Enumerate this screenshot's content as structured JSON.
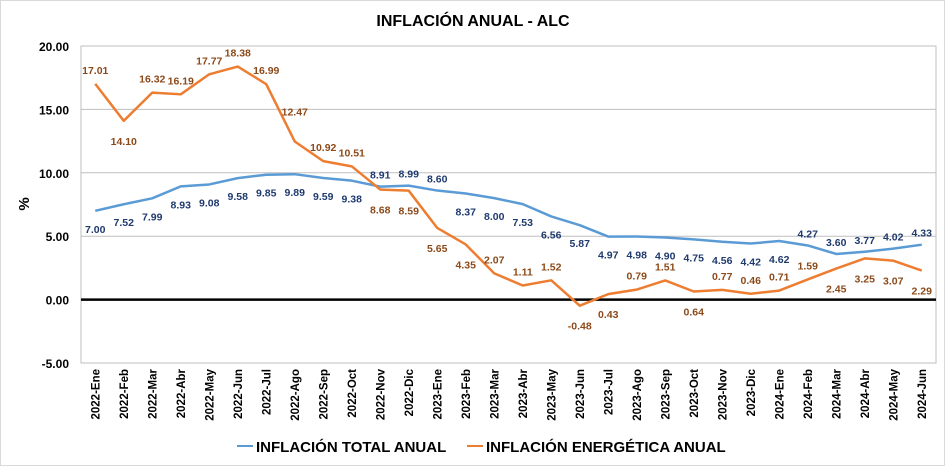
{
  "chart_data": {
    "type": "line",
    "title": "INFLACIÓN ANUAL - ALC",
    "xlabel": "",
    "ylabel": "%",
    "ylim": [
      -5,
      20
    ],
    "yticks": [
      "-5.00",
      "0.00",
      "5.00",
      "10.00",
      "15.00",
      "20.00"
    ],
    "ytick_values": [
      -5,
      0,
      5,
      10,
      15,
      20
    ],
    "grid": true,
    "legend_position": "bottom",
    "categories": [
      "2022-Ene",
      "2022-Feb",
      "2022-Mar",
      "2022-Abr",
      "2022-May",
      "2022-Jun",
      "2022-Jul",
      "2022-Ago",
      "2022-Sep",
      "2022-Oct",
      "2022-Nov",
      "2022-Dic",
      "2023-Ene",
      "2023-Feb",
      "2023-Mar",
      "2023-Abr",
      "2023-May",
      "2023-Jun",
      "2023-Jul",
      "2023-Ago",
      "2023-Sep",
      "2023-Oct",
      "2023-Nov",
      "2023-Dic",
      "2024-Ene",
      "2024-Feb",
      "2024-Mar",
      "2024-Abr",
      "2024-May",
      "2024-Jun"
    ],
    "series": [
      {
        "name": "INFLACIÓN TOTAL ANUAL",
        "color": "#5b9bd5",
        "label_color": "#1f3a6e",
        "values": [
          7.0,
          7.52,
          7.99,
          8.93,
          9.08,
          9.58,
          9.85,
          9.89,
          9.59,
          9.38,
          8.91,
          8.99,
          8.6,
          8.37,
          8.0,
          7.53,
          6.56,
          5.87,
          4.97,
          4.98,
          4.9,
          4.75,
          4.56,
          4.42,
          4.62,
          4.27,
          3.6,
          3.77,
          4.02,
          4.33
        ],
        "labels": [
          "7.00",
          "7.52",
          "7.99",
          "8.93",
          "9.08",
          "9.58",
          "9.85",
          "9.89",
          "9.59",
          "9.38",
          "8.91",
          "8.99",
          "8.60",
          "8.37",
          "8.00",
          "7.53",
          "6.56",
          "5.87",
          "4.97",
          "4.98",
          "4.90",
          "4.75",
          "4.56",
          "4.42",
          "4.62",
          "4.27",
          "3.60",
          "3.77",
          "4.02",
          "4.33"
        ]
      },
      {
        "name": "INFLACIÓN ENERGÉTICA ANUAL",
        "color": "#ed7d31",
        "label_color": "#8c4a1a",
        "values": [
          17.01,
          14.1,
          16.32,
          16.19,
          17.77,
          18.38,
          16.99,
          12.47,
          10.92,
          10.51,
          8.68,
          8.59,
          5.65,
          4.35,
          2.07,
          1.11,
          1.52,
          -0.48,
          0.43,
          0.79,
          1.51,
          0.64,
          0.77,
          0.46,
          0.71,
          1.59,
          2.45,
          3.25,
          3.07,
          2.29
        ],
        "labels": [
          "17.01",
          "14.10",
          "16.32",
          "16.19",
          "17.77",
          "18.38",
          "16.99",
          "12.47",
          "10.92",
          "10.51",
          "8.68",
          "8.59",
          "5.65",
          "4.35",
          "2.07",
          "1.11",
          "1.52",
          "-0.48",
          "0.43",
          "0.79",
          "1.51",
          "0.64",
          "0.77",
          "0.46",
          "0.71",
          "1.59",
          "2.45",
          "3.25",
          "3.07",
          "2.29"
        ]
      }
    ]
  }
}
